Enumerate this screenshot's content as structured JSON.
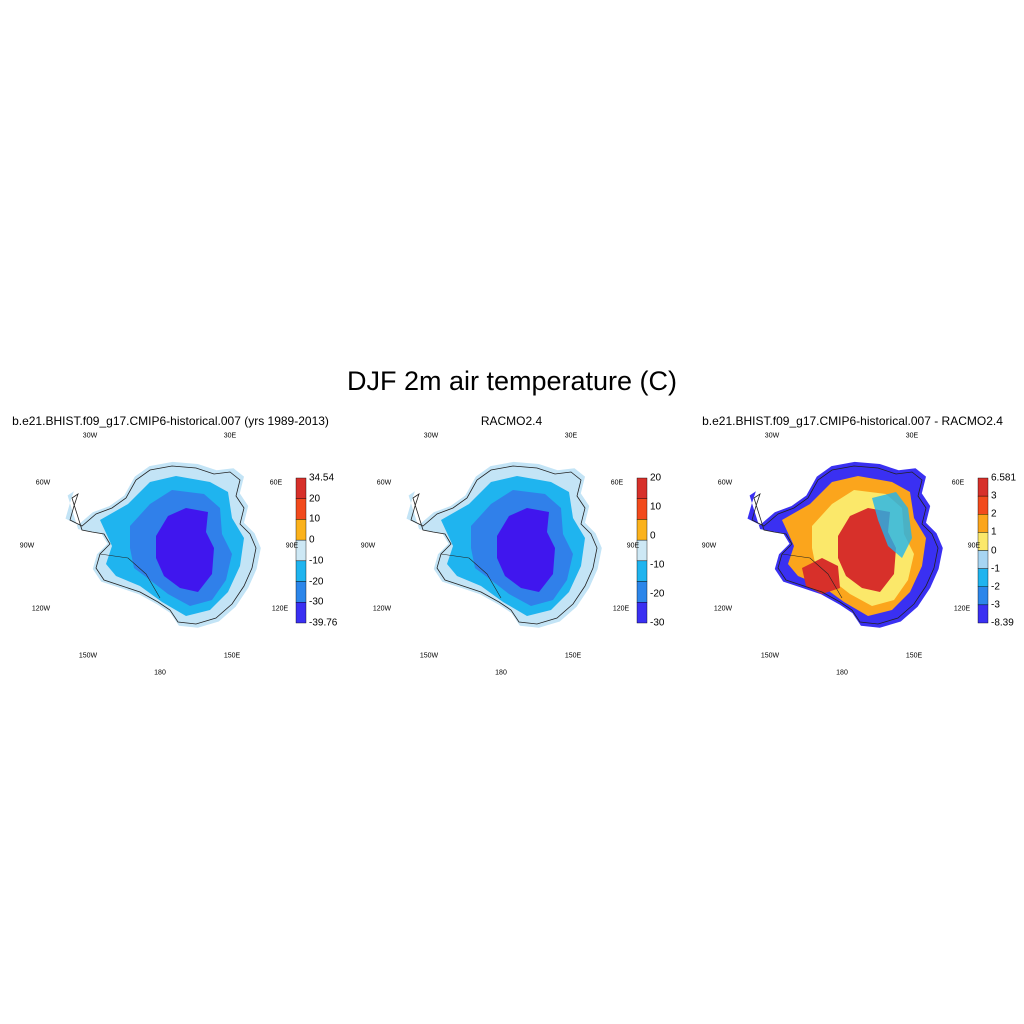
{
  "title": "DJF 2m air temperature (C)",
  "lon_labels": [
    "30W",
    "30E",
    "60W",
    "60E",
    "90W",
    "90E",
    "120W",
    "120E",
    "150W",
    "150E",
    "180"
  ],
  "panels": [
    {
      "title": "b.e21.BHIST.f09_g17.CMIP6-historical.007 (yrs 1989-2013)",
      "colorbar": {
        "labels": [
          "34.54",
          "20",
          "10",
          "0",
          "-10",
          "-20",
          "-30",
          "-39.76"
        ],
        "colors": [
          "#d7302a",
          "#f24a1c",
          "#fbb21c",
          "#cde8f5",
          "#1fb4ef",
          "#2c86ea",
          "#3a30f2"
        ]
      },
      "colors": {
        "outer": "#c3e4f6",
        "mid": "#1fb4ef",
        "inner": "#3080ea",
        "core": "#4016ee"
      }
    },
    {
      "title": "RACMO2.4",
      "colorbar": {
        "labels": [
          "20",
          "10",
          "0",
          "-10",
          "-20",
          "-30"
        ],
        "colors": [
          "#d7302a",
          "#f24a1c",
          "#fbb21c",
          "#cde8f5",
          "#1fb4ef",
          "#2c86ea",
          "#3a30f2"
        ]
      },
      "colors": {
        "outer": "#c3e4f6",
        "mid": "#1fb4ef",
        "inner": "#3080ea",
        "core": "#4016ee"
      }
    },
    {
      "title": "b.e21.BHIST.f09_g17.CMIP6-historical.007 - RACMO2.4",
      "colorbar": {
        "labels": [
          "6.581",
          "3",
          "2",
          "1",
          "0",
          "-1",
          "-2",
          "-3",
          "-8.39"
        ],
        "colors": [
          "#d7302a",
          "#f24a1c",
          "#fba51c",
          "#fbe86a",
          "#a7d5f2",
          "#1fb4ef",
          "#2c86ea",
          "#3a30f2"
        ]
      },
      "colors": {
        "outer": "#3a30f2",
        "mid": "#fba51c",
        "inner": "#fbe86a",
        "core": "#d7302a",
        "accent": "#1fb4ef"
      }
    }
  ]
}
